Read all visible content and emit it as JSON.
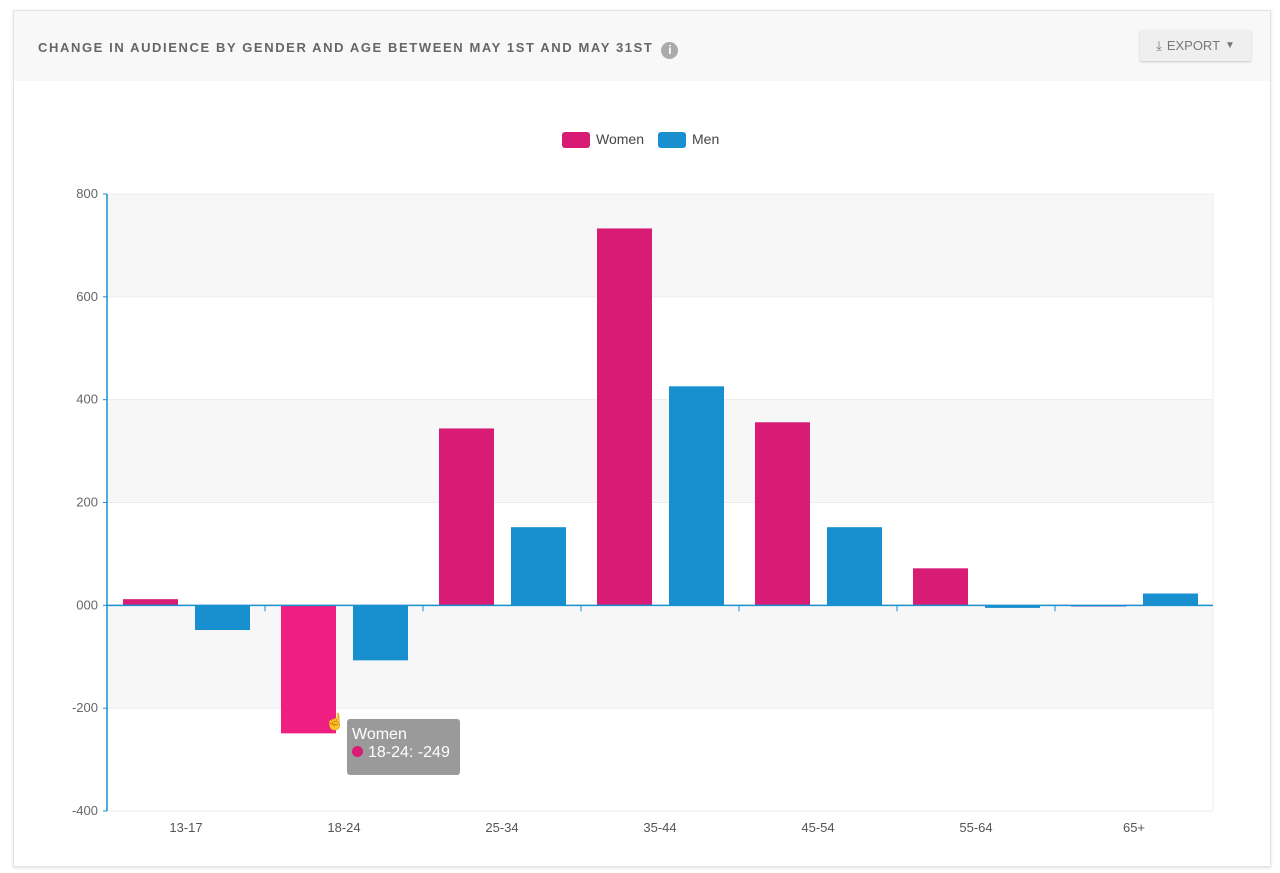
{
  "header": {
    "title": "CHANGE IN AUDIENCE BY GENDER AND AGE BETWEEN MAY 1ST AND MAY 31ST",
    "info_icon": "info-icon",
    "export_label": "EXPORT",
    "export_icon": "download-icon",
    "export_caret": "caret-down-icon"
  },
  "chart_data": {
    "type": "bar",
    "title": "",
    "categories": [
      "13-17",
      "18-24",
      "25-34",
      "35-44",
      "45-54",
      "55-64",
      "65+"
    ],
    "series": [
      {
        "name": "Women",
        "color": "#d81b75",
        "values": [
          12,
          -249,
          344,
          733,
          356,
          72,
          0
        ]
      },
      {
        "name": "Men",
        "color": "#1890d0",
        "values": [
          -48,
          -107,
          152,
          426,
          152,
          -5,
          23
        ]
      }
    ],
    "ylim": [
      -400,
      800
    ],
    "yticks": [
      "800",
      "600",
      "400",
      "200",
      "000",
      "-200",
      "-400"
    ],
    "legend": "top-center",
    "grid": true
  },
  "tooltip": {
    "series": "Women",
    "text": "18-24: -249",
    "highlight_color": "#ee1f80"
  }
}
